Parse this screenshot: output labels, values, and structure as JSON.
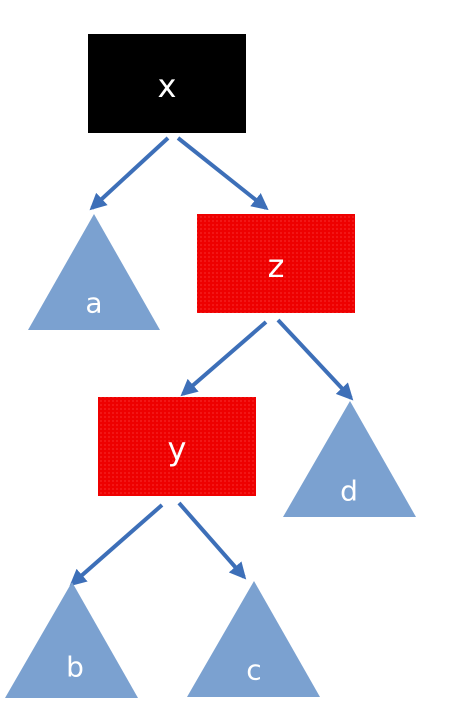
{
  "colors": {
    "black_node": "#000000",
    "red_node": "#ee0000",
    "subtree": "#7ba1d0",
    "edge": "#3d6fb8",
    "label": "#ffffff"
  },
  "nodes": {
    "x": {
      "label": "x",
      "color": "black"
    },
    "z": {
      "label": "z",
      "color": "red"
    },
    "y": {
      "label": "y",
      "color": "red"
    }
  },
  "subtrees": {
    "a": {
      "label": "a"
    },
    "b": {
      "label": "b"
    },
    "c": {
      "label": "c"
    },
    "d": {
      "label": "d"
    }
  },
  "edges": [
    {
      "from": "x",
      "to": "a"
    },
    {
      "from": "x",
      "to": "z"
    },
    {
      "from": "z",
      "to": "y"
    },
    {
      "from": "z",
      "to": "d"
    },
    {
      "from": "y",
      "to": "b"
    },
    {
      "from": "y",
      "to": "c"
    }
  ]
}
